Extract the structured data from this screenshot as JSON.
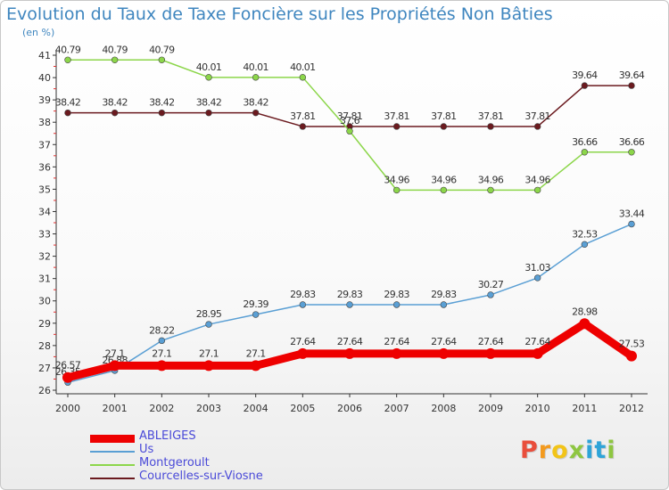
{
  "header": {
    "title": "Evolution du Taux de Taxe Foncière sur les Propriétés Non Bâties",
    "unit": "(en %)"
  },
  "logo": {
    "letters": [
      "P",
      "r",
      "o",
      "x",
      "i",
      "t",
      "i"
    ],
    "colors": [
      "#e94e3c",
      "#f39a1e",
      "#f2c418",
      "#8ec641",
      "#2ea4d8",
      "#2ea4d8",
      "#8ec641"
    ]
  },
  "chart_data": {
    "type": "line",
    "title": "Evolution du Taux de Taxe Foncière sur les Propriétés Non Bâties",
    "ylabel": "(en %)",
    "x": [
      "2000",
      "2001",
      "2002",
      "2003",
      "2004",
      "2005",
      "2006",
      "2007",
      "2008",
      "2009",
      "2010",
      "2011",
      "2012"
    ],
    "ylim": [
      26,
      41
    ],
    "yticks": [
      26,
      27,
      28,
      29,
      30,
      31,
      32,
      33,
      34,
      35,
      36,
      37,
      38,
      39,
      40,
      41
    ],
    "grid": false,
    "legend": "bottom-left",
    "series": [
      {
        "name": "Courcelles-sur-Viosne",
        "color": "#6b1a1f",
        "values": [
          38.42,
          38.42,
          38.42,
          38.42,
          38.42,
          37.81,
          37.81,
          37.81,
          37.81,
          37.81,
          37.81,
          39.64,
          39.64
        ],
        "labels": [
          "38.42",
          "38.42",
          "38.42",
          "38.42",
          "38.42",
          "37.81",
          "37.81",
          "37.81",
          "37.81",
          "37.81",
          "37.81",
          "39.64",
          "39.64"
        ]
      },
      {
        "name": "Montgeroult",
        "color": "#8cd64a",
        "values": [
          40.79,
          40.79,
          40.79,
          40.01,
          40.01,
          40.01,
          37.6,
          34.96,
          34.96,
          34.96,
          34.96,
          36.66,
          36.66
        ],
        "labels": [
          "40.79",
          "40.79",
          "40.79",
          "40.01",
          "40.01",
          "40.01",
          "37.6",
          "34.96",
          "34.96",
          "34.96",
          "34.96",
          "36.66",
          "36.66"
        ]
      },
      {
        "name": "Us",
        "color": "#5a9fd4",
        "values": [
          26.35,
          26.88,
          28.22,
          28.95,
          29.39,
          29.83,
          29.83,
          29.83,
          29.83,
          30.27,
          31.03,
          32.53,
          33.44
        ],
        "labels": [
          "26.35",
          "26.88",
          "28.22",
          "28.95",
          "29.39",
          "29.83",
          "29.83",
          "29.83",
          "29.83",
          "30.27",
          "31.03",
          "32.53",
          "33.44"
        ]
      },
      {
        "name": "ABLEIGES",
        "color": "#ee0000",
        "values": [
          26.57,
          27.1,
          27.1,
          27.1,
          27.1,
          27.64,
          27.64,
          27.64,
          27.64,
          27.64,
          27.64,
          28.98,
          27.53
        ],
        "labels": [
          "26.57",
          "27.1",
          "27.1",
          "27.1",
          "27.1",
          "27.64",
          "27.64",
          "27.64",
          "27.64",
          "27.64",
          "27.64",
          "28.98",
          "27.53"
        ]
      }
    ],
    "legend_order": [
      "ABLEIGES",
      "Us",
      "Montgeroult",
      "Courcelles-sur-Viosne"
    ]
  }
}
